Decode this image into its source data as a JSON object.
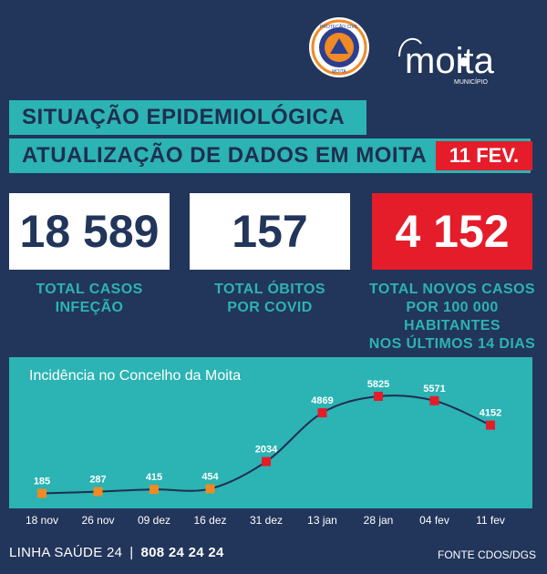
{
  "header": {
    "title_line1": "SITUAÇÃO EPIDEMIOLÓGICA",
    "title_line2": "ATUALIZAÇÃO DE DADOS EM MOITA",
    "date_badge": "11 FEV.",
    "logo_protecao_civil": "PROTEÇÃO CIVIL",
    "logo_protecao_civil_sub": "MOITA",
    "logo_municipio_name": "moita",
    "logo_municipio_sub": "MUNICÍPIO"
  },
  "stats": {
    "total_cases": {
      "value": "18 589",
      "label_lines": [
        "TOTAL CASOS",
        "INFEÇÃO"
      ]
    },
    "total_deaths": {
      "value": "157",
      "label_lines": [
        "TOTAL ÓBITOS",
        "POR COVID"
      ]
    },
    "incidence": {
      "value": "4 152",
      "label_lines": [
        "TOTAL NOVOS CASOS",
        "POR 100 000 HABITANTES",
        "NOS ÚLTIMOS 14 DIAS"
      ]
    }
  },
  "chart_data": {
    "type": "line",
    "title": "Incidência no Concelho da Moita",
    "categories": [
      "18 nov",
      "26 nov",
      "09 dez",
      "16 dez",
      "31 dez",
      "13 jan",
      "28 jan",
      "04 fev",
      "11 fev"
    ],
    "series": [
      {
        "values": [
          185,
          287,
          415,
          454,
          2034,
          4869,
          5825,
          5571,
          4152
        ]
      }
    ],
    "marker_colors": [
      "#f08a24",
      "#f08a24",
      "#f08a24",
      "#f08a24",
      "#e51c2a",
      "#e51c2a",
      "#e51c2a",
      "#e51c2a",
      "#e51c2a"
    ],
    "line_color": "#1f2e50",
    "xlabel": "",
    "ylabel": ""
  },
  "footer": {
    "hotline_label": "LINHA SAÚDE 24",
    "separator": "|",
    "hotline_number": "808 24 24 24",
    "source": "FONTE CDOS/DGS"
  },
  "colors": {
    "background": "#22355a",
    "teal": "#2cb3b3",
    "red": "#e51c2a",
    "orange": "#f08a24",
    "white": "#ffffff"
  },
  "icons": [
    "protecao-civil-logo-icon",
    "municipio-moita-logo-icon"
  ]
}
